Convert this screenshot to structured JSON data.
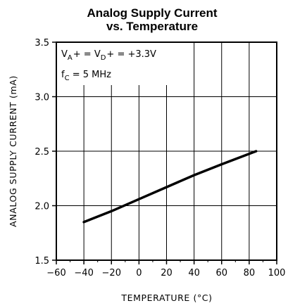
{
  "chart_data": {
    "type": "line",
    "title_line1": "Analog Supply Current",
    "title_line2": "vs. Temperature",
    "xlabel": "TEMPERATURE (°C)",
    "ylabel": "ANALOG SUPPLY CURRENT (mA)",
    "xlim": [
      -60,
      100
    ],
    "ylim": [
      1.5,
      3.5
    ],
    "x_ticks": [
      -60,
      -40,
      -20,
      0,
      20,
      40,
      60,
      80,
      100
    ],
    "y_ticks": [
      "1.5",
      "2.0",
      "2.5",
      "3.0",
      "3.5"
    ],
    "grid": true,
    "series": [
      {
        "x": [
          -40,
          -20,
          0,
          20,
          40,
          60,
          85
        ],
        "y": [
          1.85,
          1.95,
          2.06,
          2.17,
          2.28,
          2.38,
          2.5
        ],
        "color": "#000000"
      }
    ],
    "annotations": {
      "line1": {
        "v": "V",
        "a_sub": "A",
        "plus_eq": "+ = ",
        "v2": "V",
        "d_sub": "D",
        "rest": "+ = +3.3V"
      },
      "line2": {
        "f": "f",
        "c_sub": "C",
        "rest": " = 5 MHz"
      }
    }
  }
}
